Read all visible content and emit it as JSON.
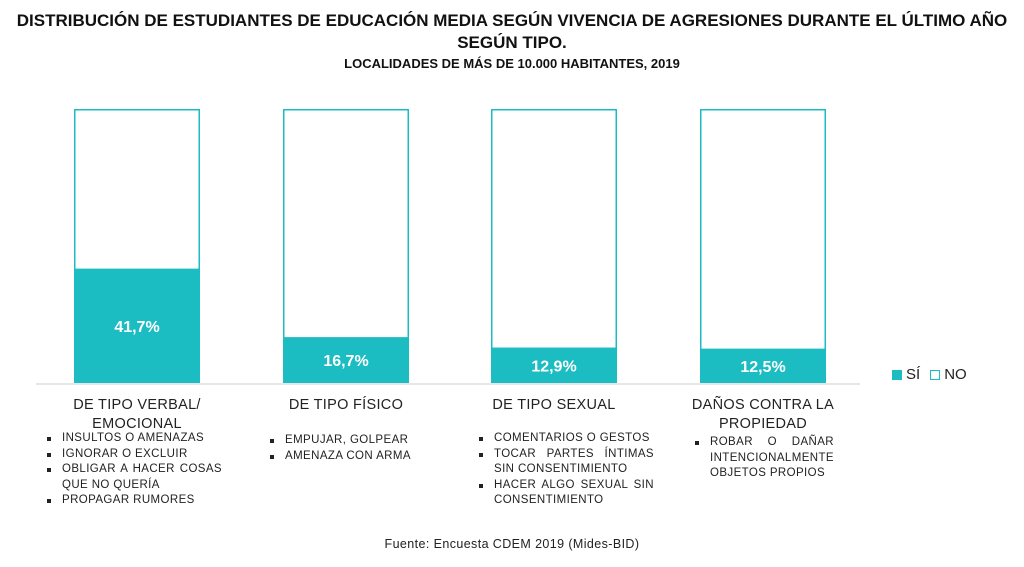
{
  "header": {
    "title": "DISTRIBUCIÓN DE ESTUDIANTES DE EDUCACIÓN MEDIA SEGÚN VIVENCIA DE AGRESIONES DURANTE EL ÚLTIMO AÑO SEGÚN TIPO.",
    "subtitle": "LOCALIDADES DE MÁS DE 10.000 HABITANTES, 2019"
  },
  "legend": {
    "si": "SÍ",
    "no": "NO"
  },
  "source": "Fuente: Encuesta CDEM 2019 (Mides-BID)",
  "colors": {
    "si": "#1bbcc2",
    "no": "#ffffff",
    "outline": "#1bbcc2"
  },
  "chart_data": {
    "type": "bar",
    "stacked": true,
    "percent": true,
    "categories": [
      "DE TIPO VERBAL/ EMOCIONAL",
      "DE TIPO FÍSICO",
      "DE TIPO SEXUAL",
      "DAÑOS CONTRA LA PROPIEDAD"
    ],
    "series": [
      {
        "name": "SÍ",
        "values": [
          41.7,
          16.7,
          12.9,
          12.5
        ],
        "labels": [
          "41,7%",
          "16,7%",
          "12,9%",
          "12,5%"
        ]
      },
      {
        "name": "NO",
        "values": [
          58.3,
          83.3,
          87.1,
          87.5
        ]
      }
    ],
    "ylim": [
      0,
      100
    ],
    "grid": false,
    "legend_position": "right",
    "category_details": [
      [
        "INSULTOS O AMENAZAS",
        "IGNORAR O EXCLUIR",
        "OBLIGAR A HACER COSAS QUE NO QUERÍA",
        "PROPAGAR RUMORES"
      ],
      [
        "EMPUJAR, GOLPEAR",
        "AMENAZA CON ARMA"
      ],
      [
        "COMENTARIOS O GESTOS",
        "TOCAR PARTES ÍNTIMAS SIN CONSENTIMIENTO",
        "HACER ALGO SEXUAL SIN CONSENTIMIENTO"
      ],
      [
        "ROBAR O DAÑAR INTENCIONALMENTE OBJETOS PROPIOS"
      ]
    ]
  }
}
